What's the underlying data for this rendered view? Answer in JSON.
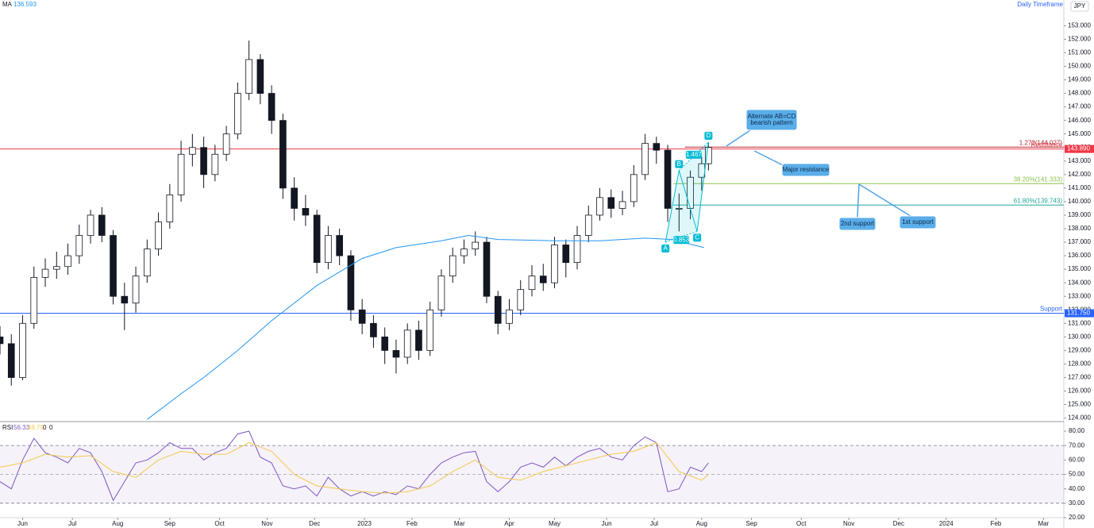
{
  "header": {
    "timeframe": "Daily Timeframe",
    "currency": "JPY"
  },
  "chart_data": [
    {
      "type": "candlestick",
      "xlim": [
        0,
        470
      ],
      "ylim": [
        123.8,
        154.9
      ],
      "yticks": [
        {
          "value": 124,
          "label": "124.000"
        },
        {
          "value": 125,
          "label": "125.000"
        },
        {
          "value": 126,
          "label": "126.000"
        },
        {
          "value": 127,
          "label": "127.000"
        },
        {
          "value": 128,
          "label": "128.000"
        },
        {
          "value": 129,
          "label": "129.000"
        },
        {
          "value": 130,
          "label": "130.000"
        },
        {
          "value": 131,
          "label": "131.000"
        },
        {
          "value": 132,
          "label": "132.000"
        },
        {
          "value": 133,
          "label": "133.000"
        },
        {
          "value": 134,
          "label": "134.000"
        },
        {
          "value": 135,
          "label": "135.000"
        },
        {
          "value": 136,
          "label": "136.000"
        },
        {
          "value": 137,
          "label": "137.000"
        },
        {
          "value": 138,
          "label": "138.000"
        },
        {
          "value": 139,
          "label": "139.000"
        },
        {
          "value": 140,
          "label": "140.000"
        },
        {
          "value": 141,
          "label": "141.000"
        },
        {
          "value": 142,
          "label": "142.000"
        },
        {
          "value": 143,
          "label": "143.000"
        },
        {
          "value": 144,
          "label": "144.000"
        },
        {
          "value": 145,
          "label": "145.000"
        },
        {
          "value": 146,
          "label": "146.000"
        },
        {
          "value": 147,
          "label": "147.000"
        },
        {
          "value": 148,
          "label": "148.000"
        },
        {
          "value": 149,
          "label": "149.000"
        },
        {
          "value": 150,
          "label": "150.000"
        },
        {
          "value": 151,
          "label": "151.000"
        },
        {
          "value": 152,
          "label": "152.000"
        },
        {
          "value": 153,
          "label": "153.000"
        }
      ],
      "colors": {
        "up": "#ffffff",
        "down": "#131722",
        "wick": "#131722"
      },
      "x": [
        0,
        5,
        10,
        15,
        20,
        25,
        30,
        35,
        40,
        45,
        50,
        55,
        60,
        65,
        70,
        75,
        80,
        85,
        90,
        95,
        100,
        105,
        110,
        115,
        120,
        125,
        130,
        135,
        140,
        145,
        150,
        155,
        160,
        165,
        170,
        175,
        180,
        185,
        190,
        195,
        200,
        205,
        210,
        215,
        220,
        225,
        230,
        235,
        240,
        245,
        250,
        255,
        260,
        265,
        270,
        275,
        280,
        285,
        290,
        295,
        300,
        305,
        310,
        313
      ],
      "open": [
        130,
        129.5,
        127,
        131,
        134.4,
        135,
        135.2,
        136,
        137.5,
        139,
        137.5,
        133,
        132.5,
        134.5,
        136.5,
        138.5,
        140.5,
        143.5,
        144,
        142,
        143.5,
        145,
        148,
        150.5,
        148,
        146,
        141,
        139.5,
        139,
        135.5,
        137.5,
        136,
        132,
        131,
        130,
        129,
        128.5,
        130.5,
        129,
        132,
        134.5,
        136,
        136.5,
        137,
        133,
        131,
        132,
        133.5,
        134.5,
        134,
        136.8,
        135.5,
        137.5,
        139,
        140.3,
        139.5,
        140,
        142,
        144.3,
        143.8,
        139.5,
        139.5,
        141.8,
        142.8
      ],
      "high": [
        130.8,
        130.2,
        131.6,
        135.2,
        135.8,
        136.3,
        136.9,
        138.3,
        139.4,
        139.6,
        137.9,
        134,
        135.2,
        137.2,
        139.2,
        141.3,
        144.5,
        145,
        144.8,
        144.2,
        145.6,
        148.8,
        151.9,
        150.9,
        148.6,
        146.5,
        141.8,
        140.5,
        139.4,
        138.2,
        138,
        136.4,
        132.8,
        131.6,
        130.7,
        129.8,
        131,
        131.2,
        132.6,
        135,
        136.6,
        137.2,
        137.8,
        137.4,
        133.4,
        132.8,
        134.2,
        135.3,
        135.4,
        137.4,
        137.2,
        138.2,
        139.7,
        141,
        140.9,
        140.8,
        142.7,
        145,
        144.8,
        144.2,
        140.6,
        142.3,
        143.3,
        144.4
      ],
      "low": [
        128.7,
        126.4,
        126.8,
        130.6,
        133.7,
        134.3,
        134.6,
        135.4,
        136.9,
        137,
        132.4,
        130.5,
        131.8,
        134,
        136,
        138,
        140,
        142.6,
        141,
        141.5,
        143,
        144.6,
        147.5,
        147.2,
        145,
        140.2,
        138.6,
        138.2,
        134.7,
        135,
        135.3,
        131.2,
        130.2,
        129.2,
        128,
        127.3,
        128,
        128.3,
        128.6,
        131.5,
        134,
        135.4,
        136,
        132.5,
        130.2,
        130.5,
        131.6,
        133,
        133.4,
        133.6,
        134.4,
        135,
        137,
        138.6,
        138.8,
        139,
        139.6,
        141.6,
        142.8,
        138.5,
        137.8,
        138.7,
        140.8,
        142.3
      ],
      "close": [
        129.5,
        127,
        131,
        134.4,
        135,
        135.2,
        136,
        137.5,
        139,
        137.5,
        133,
        132.5,
        134.5,
        136.5,
        138.5,
        140.5,
        143.5,
        144,
        142,
        143.5,
        145,
        148,
        150.5,
        148,
        146,
        141,
        139.5,
        139,
        135.5,
        137.5,
        136,
        132,
        131,
        130,
        129,
        128.5,
        130.5,
        129,
        132,
        134.5,
        136,
        136.5,
        137,
        133,
        131,
        132,
        133.5,
        134.5,
        134,
        136.8,
        135.5,
        137.5,
        139,
        140.3,
        139.5,
        140,
        142,
        144.3,
        143.8,
        139.5,
        139.5,
        141.8,
        142.8,
        144
      ],
      "ma": {
        "name": "MA",
        "value_label": "136.593",
        "color": "#2196f3",
        "x": [
          65,
          80,
          90,
          105,
          120,
          140,
          160,
          175,
          195,
          207,
          220,
          245,
          265,
          285,
          297,
          311
        ],
        "values": [
          123.9,
          125.8,
          127,
          129,
          131.2,
          133.8,
          135.8,
          136.6,
          137.1,
          137.5,
          137.2,
          137.1,
          137.1,
          137.3,
          137.2,
          136.6
        ]
      },
      "lines": [
        {
          "name": "Resistance",
          "value": 143.89,
          "value_label": "143.890",
          "color": "#f23645"
        },
        {
          "name": "Support",
          "value": 131.75,
          "value_label": "131.750",
          "color": "#2962ff"
        }
      ],
      "fib_levels": [
        {
          "label": "1.272(144.027)",
          "value": 144.027,
          "x_start": 302.5,
          "color": "#b22833"
        },
        {
          "label": "38.20%(141.333)",
          "value": 141.333,
          "x_start": 297.5,
          "color": "#8bc34a"
        },
        {
          "label": "61.80%(139.743)",
          "value": 139.743,
          "x_start": 297.5,
          "color": "#26a69a"
        }
      ],
      "pattern": {
        "color": "#00bcd4",
        "labels": [
          "A",
          "B",
          "C",
          "D"
        ],
        "x": [
          294,
          300,
          308,
          313
        ],
        "y": [
          137.0,
          142.3,
          137.8,
          144.4
        ],
        "ratios": [
          "0.853",
          "1.467"
        ]
      },
      "callouts": [
        {
          "lines": [
            "Alternate AB=CD",
            "bearish pattern"
          ]
        },
        {
          "lines": [
            "Major resistance"
          ]
        },
        {
          "lines": [
            "2nd support"
          ]
        },
        {
          "lines": [
            "1st support"
          ]
        }
      ]
    },
    {
      "type": "line",
      "title": "RSI",
      "readouts": [
        "56.33",
        "48.79",
        "0",
        "0"
      ],
      "xlim": [
        0,
        470
      ],
      "ylim": [
        20,
        85.5
      ],
      "yticks": [
        {
          "value": 20,
          "label": "20.00"
        },
        {
          "value": 30,
          "label": "30.00"
        },
        {
          "value": 40,
          "label": "40.00"
        },
        {
          "value": 50,
          "label": "50.00"
        },
        {
          "value": 60,
          "label": "60.00"
        },
        {
          "value": 70,
          "label": "70.00"
        },
        {
          "value": 80,
          "label": "80.00"
        }
      ],
      "xticks": [
        {
          "value": 10,
          "label": "Jun"
        },
        {
          "value": 32,
          "label": "Jul"
        },
        {
          "value": 52,
          "label": "Aug"
        },
        {
          "value": 75,
          "label": "Sep"
        },
        {
          "value": 97,
          "label": "Oct"
        },
        {
          "value": 118,
          "label": "Nov"
        },
        {
          "value": 139,
          "label": "Dec"
        },
        {
          "value": 161,
          "label": "2023"
        },
        {
          "value": 182,
          "label": "Feb"
        },
        {
          "value": 203,
          "label": "Mar"
        },
        {
          "value": 225,
          "label": "Apr"
        },
        {
          "value": 245,
          "label": "May"
        },
        {
          "value": 268,
          "label": "Jun"
        },
        {
          "value": 289,
          "label": "Jul"
        },
        {
          "value": 310,
          "label": "Aug"
        },
        {
          "value": 332,
          "label": "Sep"
        },
        {
          "value": 354,
          "label": "Oct"
        },
        {
          "value": 375,
          "label": "Nov"
        },
        {
          "value": 397,
          "label": "Dec"
        },
        {
          "value": 418,
          "label": "2024"
        },
        {
          "value": 440,
          "label": "Feb"
        },
        {
          "value": 461,
          "label": "Mar"
        }
      ],
      "band": [
        30,
        70
      ],
      "midline": 50,
      "band_color": "#7e57c2",
      "series": [
        {
          "color": "#7e57c2",
          "x": [
            0,
            5,
            10,
            15,
            20,
            25,
            30,
            35,
            40,
            45,
            50,
            55,
            60,
            65,
            70,
            75,
            80,
            85,
            90,
            95,
            100,
            105,
            110,
            115,
            120,
            125,
            130,
            135,
            140,
            145,
            150,
            155,
            160,
            165,
            170,
            175,
            180,
            185,
            190,
            195,
            200,
            205,
            210,
            215,
            220,
            225,
            230,
            235,
            240,
            245,
            250,
            255,
            260,
            265,
            270,
            275,
            280,
            285,
            290,
            295,
            300,
            305,
            310,
            313
          ],
          "values": [
            45,
            40,
            60,
            75,
            65,
            62,
            58,
            68,
            65,
            52,
            32,
            45,
            58,
            60,
            65,
            72,
            68,
            68,
            60,
            65,
            68,
            78,
            80,
            62,
            58,
            42,
            40,
            42,
            35,
            48,
            40,
            35,
            38,
            35,
            38,
            36,
            42,
            40,
            50,
            58,
            62,
            65,
            66,
            45,
            38,
            45,
            55,
            58,
            55,
            62,
            56,
            62,
            66,
            68,
            62,
            60,
            70,
            76,
            72,
            38,
            40,
            55,
            52,
            58
          ]
        },
        {
          "color": "#f5c94a",
          "x": [
            0,
            10,
            20,
            30,
            40,
            50,
            60,
            70,
            80,
            90,
            100,
            110,
            120,
            130,
            140,
            150,
            160,
            170,
            180,
            190,
            200,
            210,
            220,
            230,
            240,
            250,
            260,
            270,
            280,
            290,
            300,
            310,
            313
          ],
          "values": [
            55,
            58,
            64,
            62,
            63,
            52,
            48,
            60,
            66,
            64,
            64,
            72,
            66,
            50,
            42,
            40,
            38,
            37,
            38,
            42,
            52,
            60,
            48,
            46,
            52,
            56,
            60,
            64,
            66,
            72,
            52,
            46,
            50
          ]
        }
      ]
    }
  ]
}
